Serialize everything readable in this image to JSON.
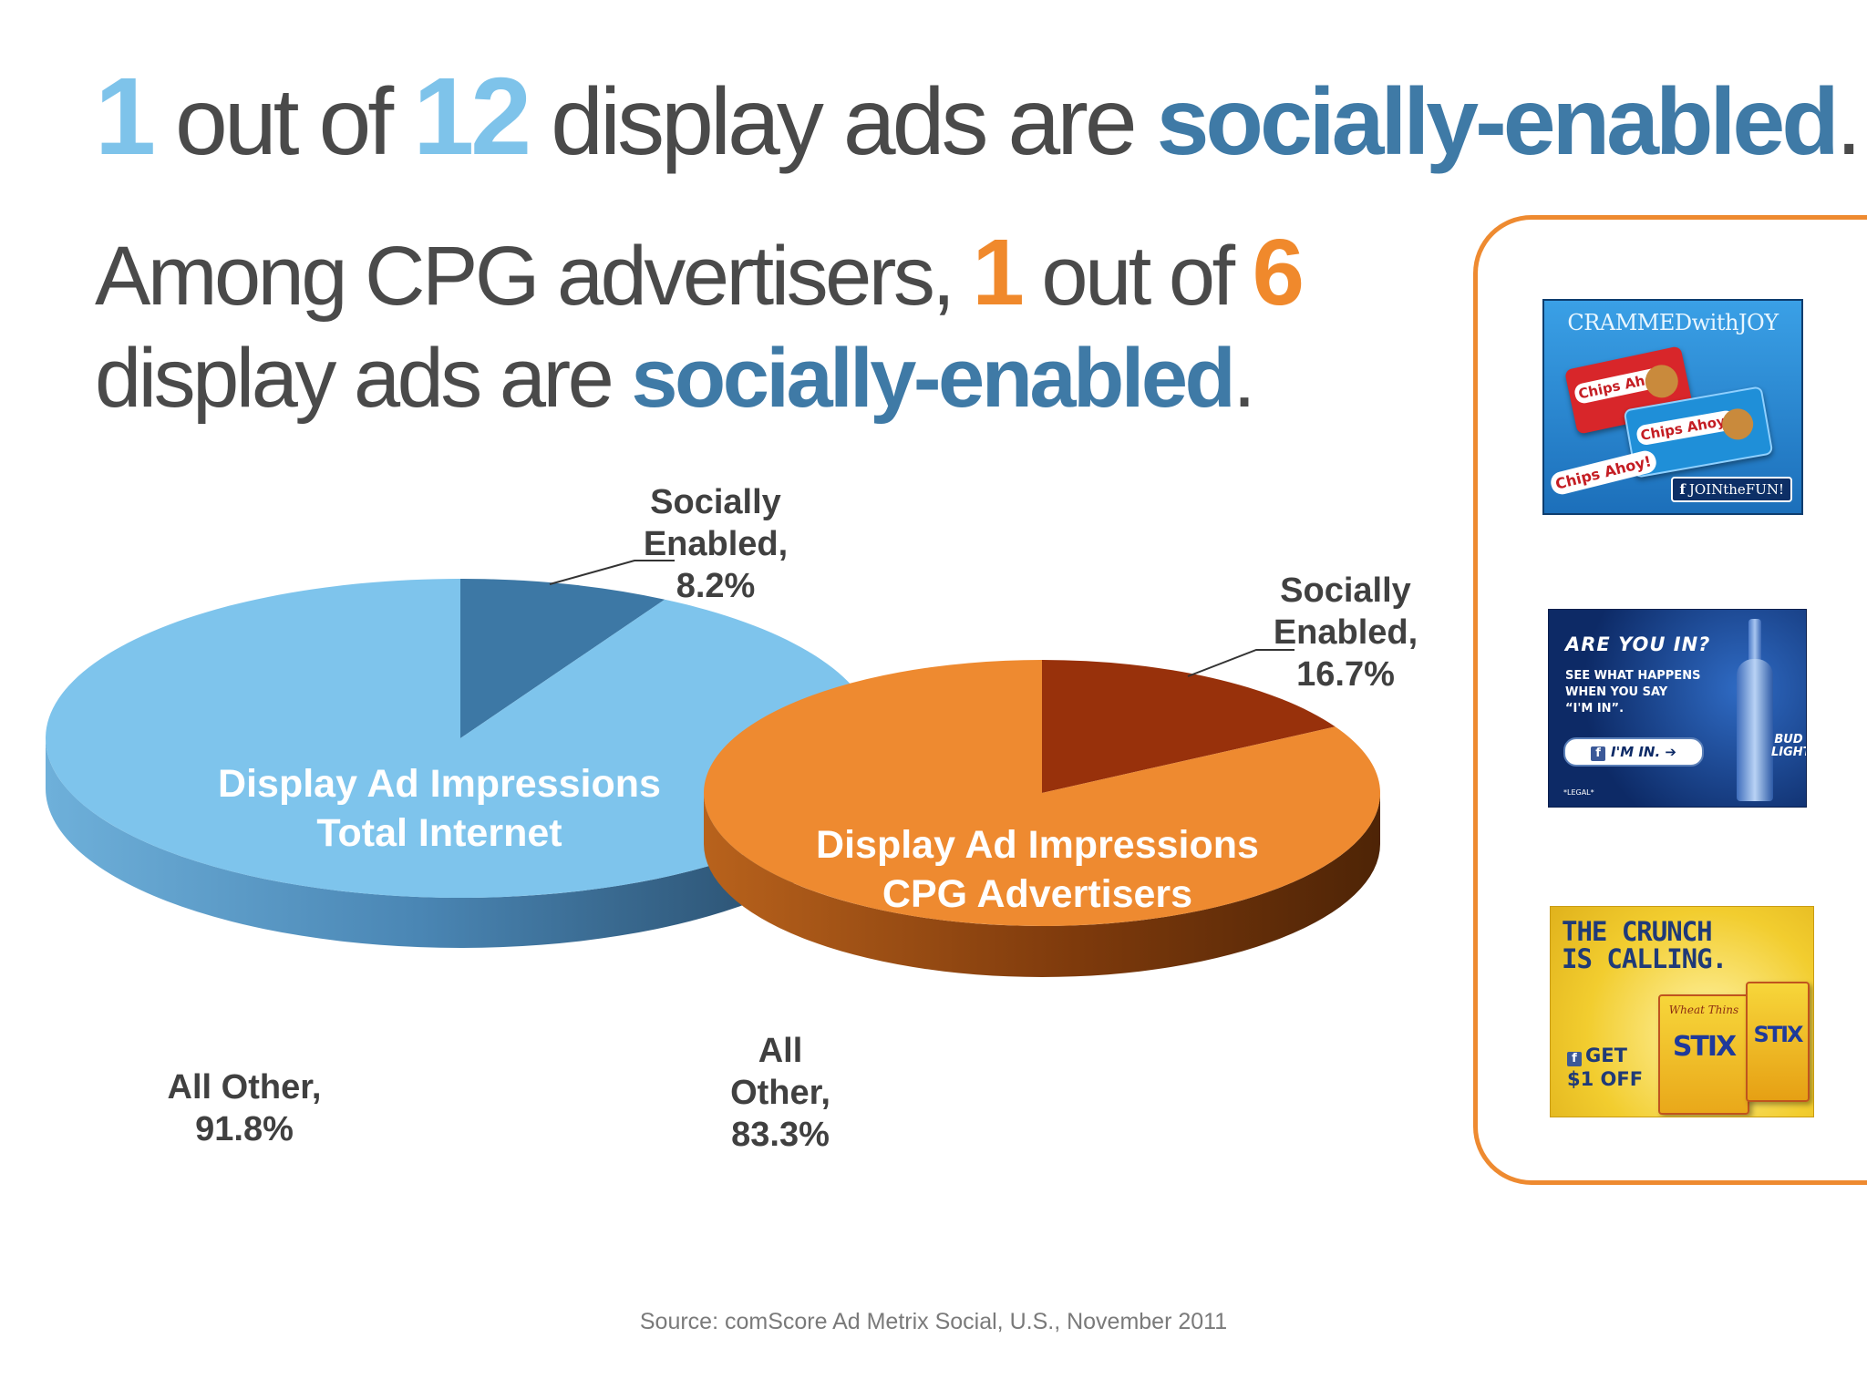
{
  "headline1": {
    "num1": "1",
    "text1": " out of ",
    "num2": "12",
    "text2": " display ads are ",
    "highlight": "socially-enabled",
    "end": "."
  },
  "headline2": {
    "text1": "Among CPG advertisers, ",
    "num1": "1",
    "text2": " out of ",
    "num2": "6",
    "text3": "display ads are ",
    "highlight": "socially-enabled",
    "end": "."
  },
  "chart_data": [
    {
      "type": "pie",
      "title": "Display Ad Impressions Total Internet",
      "title_lines": [
        "Display Ad Impressions",
        "Total Internet"
      ],
      "slices": [
        {
          "label_lines": [
            "Socially",
            "Enabled,",
            "8.2%"
          ],
          "name": "Socially Enabled",
          "value": 8.2,
          "color": "#3d78a5"
        },
        {
          "label_lines": [
            "All Other,",
            "91.8%"
          ],
          "name": "All Other",
          "value": 91.8,
          "color": "#7ec4ec"
        }
      ]
    },
    {
      "type": "pie",
      "title": "Display Ad Impressions CPG Advertisers",
      "title_lines": [
        "Display Ad Impressions",
        "CPG Advertisers"
      ],
      "slices": [
        {
          "label_lines": [
            "Socially",
            "Enabled,",
            "16.7%"
          ],
          "name": "Socially Enabled",
          "value": 16.7,
          "color": "#98310b"
        },
        {
          "label_lines": [
            "All",
            "Other,",
            "83.3%"
          ],
          "name": "All Other",
          "value": 83.3,
          "color": "#ee8a30"
        }
      ]
    }
  ],
  "ads": {
    "chips": {
      "headline": "CRAMMEDwithJOY",
      "brand": "Chips Ahoy!",
      "cta": "JOINtheFUN!",
      "bg": "#2a8fd6"
    },
    "bud": {
      "headline": "ARE YOU IN?",
      "body": [
        "SEE WHAT HAPPENS",
        "WHEN YOU SAY",
        "“I'M IN”."
      ],
      "cta": "I'M IN.",
      "brand": "BUD LIGHT",
      "legal": "*LEGAL*",
      "bg": "#123a84"
    },
    "wheat": {
      "headline": [
        "THE CRUNCH",
        "IS CALLING."
      ],
      "cta": [
        "GET",
        "$1 OFF"
      ],
      "brand": "Wheat Thins",
      "product": "STIX",
      "bg": "#f2cd2f"
    }
  },
  "source": "Source: comScore Ad Metrix Social, U.S., November 2011"
}
